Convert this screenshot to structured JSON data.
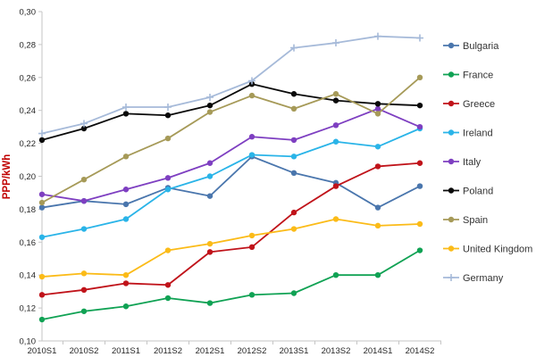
{
  "figure": {
    "title": "",
    "ylabel_color": "#c00000",
    "background": "#ffffff",
    "axis_color": "#c6c6c6"
  },
  "chart_data": {
    "type": "line",
    "title": "",
    "xlabel": "",
    "ylabel": "PPP/kWh",
    "grid": false,
    "legend_position": "right",
    "ylim": [
      0.1,
      0.3
    ],
    "y_ticks": [
      {
        "value": 0.1,
        "label": "0,10"
      },
      {
        "value": 0.12,
        "label": "0,12"
      },
      {
        "value": 0.14,
        "label": "0,14"
      },
      {
        "value": 0.16,
        "label": "0,16"
      },
      {
        "value": 0.18,
        "label": "0,18"
      },
      {
        "value": 0.2,
        "label": "0,20"
      },
      {
        "value": 0.22,
        "label": "0,22"
      },
      {
        "value": 0.24,
        "label": "0,24"
      },
      {
        "value": 0.26,
        "label": "0,26"
      },
      {
        "value": 0.28,
        "label": "0,28"
      },
      {
        "value": 0.3,
        "label": "0,30"
      }
    ],
    "categories": [
      "2010S1",
      "2010S2",
      "2011S1",
      "2011S2",
      "2012S1",
      "2012S2",
      "2013S1",
      "2013S2",
      "2014S1",
      "2014S2"
    ],
    "series": [
      {
        "name": "Bulgaria",
        "color": "#4a76ad",
        "marker": "circle",
        "values": [
          0.181,
          0.185,
          0.183,
          0.193,
          0.188,
          0.212,
          0.202,
          0.196,
          0.181,
          0.194
        ]
      },
      {
        "name": "France",
        "color": "#10a254",
        "marker": "circle",
        "values": [
          0.113,
          0.118,
          0.121,
          0.126,
          0.123,
          0.128,
          0.129,
          0.14,
          0.14,
          0.155
        ]
      },
      {
        "name": "Greece",
        "color": "#c0131a",
        "marker": "circle",
        "values": [
          0.128,
          0.131,
          0.135,
          0.134,
          0.154,
          0.157,
          0.178,
          0.194,
          0.206,
          0.208
        ]
      },
      {
        "name": "Ireland",
        "color": "#2ab4e8",
        "marker": "circle",
        "values": [
          0.163,
          0.168,
          0.174,
          0.192,
          0.2,
          0.213,
          0.212,
          0.221,
          0.218,
          0.229
        ]
      },
      {
        "name": "Italy",
        "color": "#7e3fc1",
        "marker": "circle",
        "values": [
          0.189,
          0.185,
          0.192,
          0.199,
          0.208,
          0.224,
          0.222,
          0.231,
          0.241,
          0.23
        ]
      },
      {
        "name": "Poland",
        "color": "#0a0a0a",
        "marker": "circle",
        "values": [
          0.222,
          0.229,
          0.238,
          0.237,
          0.243,
          0.256,
          0.25,
          0.246,
          0.244,
          0.243
        ]
      },
      {
        "name": "Spain",
        "color": "#a69a58",
        "marker": "circle",
        "values": [
          0.184,
          0.198,
          0.212,
          0.223,
          0.239,
          0.249,
          0.241,
          0.25,
          0.238,
          0.26
        ]
      },
      {
        "name": "United Kingdom",
        "color": "#fbbb18",
        "marker": "circle",
        "values": [
          0.139,
          0.141,
          0.14,
          0.155,
          0.159,
          0.164,
          0.168,
          0.174,
          0.17,
          0.171
        ]
      },
      {
        "name": "Germany",
        "color": "#a6bad9",
        "marker": "plus",
        "values": [
          0.226,
          0.232,
          0.242,
          0.242,
          0.248,
          0.258,
          0.278,
          0.281,
          0.285,
          0.284
        ]
      }
    ]
  }
}
